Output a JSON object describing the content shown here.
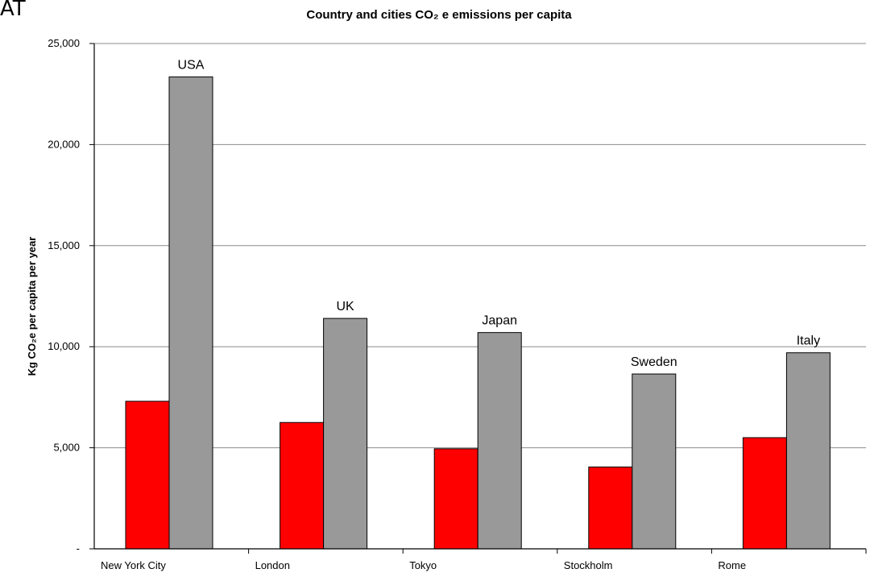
{
  "corner_label": "AT",
  "chart_data": {
    "type": "bar",
    "title": "Country and cities CO₂ e emissions per capita",
    "xlabel": "",
    "ylabel": "Kg CO₂e per capita per year",
    "ylim": [
      0,
      25000
    ],
    "yticks": [
      {
        "value": 0,
        "label": "-"
      },
      {
        "value": 5000,
        "label": "5,000"
      },
      {
        "value": 10000,
        "label": "10,000"
      },
      {
        "value": 15000,
        "label": "15,000"
      },
      {
        "value": 20000,
        "label": "20,000"
      },
      {
        "value": 25000,
        "label": "25,000"
      }
    ],
    "grid": true,
    "categories": [
      "New York City",
      "London",
      "Tokyo",
      "Stockholm",
      "Rome"
    ],
    "series": [
      {
        "key": "city",
        "color": "#ff0000",
        "values": [
          7300,
          6250,
          4950,
          4050,
          5500
        ]
      },
      {
        "key": "country",
        "color": "#999999",
        "values": [
          23350,
          11400,
          10700,
          8650,
          9700
        ],
        "labels": [
          "USA",
          "UK",
          "Japan",
          "Sweden",
          "Italy"
        ]
      }
    ]
  }
}
